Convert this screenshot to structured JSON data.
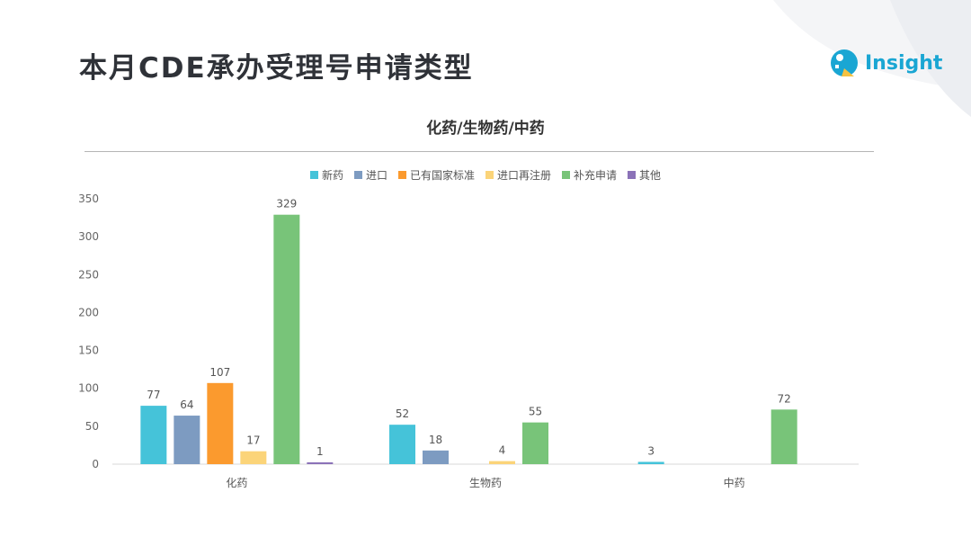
{
  "header": {
    "title": "本月CDE承办受理号申请类型"
  },
  "logo": {
    "text": "Insight"
  },
  "colors": {
    "title": "#2f3238",
    "logo": "#1aa6d3"
  },
  "chart_data": {
    "type": "bar",
    "title": "化药/生物药/中药",
    "categories": [
      "化药",
      "生物药",
      "中药"
    ],
    "series": [
      {
        "name": "新药",
        "color": "#45c3d9",
        "values": [
          77,
          52,
          3
        ]
      },
      {
        "name": "进口",
        "color": "#7d9bc1",
        "values": [
          64,
          18,
          0
        ]
      },
      {
        "name": "已有国家标准",
        "color": "#fb9a2e",
        "values": [
          107,
          0,
          0
        ]
      },
      {
        "name": "进口再注册",
        "color": "#fbd479",
        "values": [
          17,
          4,
          0
        ]
      },
      {
        "name": "补充申请",
        "color": "#78c479",
        "values": [
          329,
          55,
          72
        ]
      },
      {
        "name": "其他",
        "color": "#8b72b8",
        "values": [
          1,
          0,
          0
        ]
      }
    ],
    "ylim": [
      0,
      350
    ],
    "yticks": [
      0,
      50,
      100,
      150,
      200,
      250,
      300,
      350
    ],
    "grid": false,
    "legend": "top-center"
  }
}
